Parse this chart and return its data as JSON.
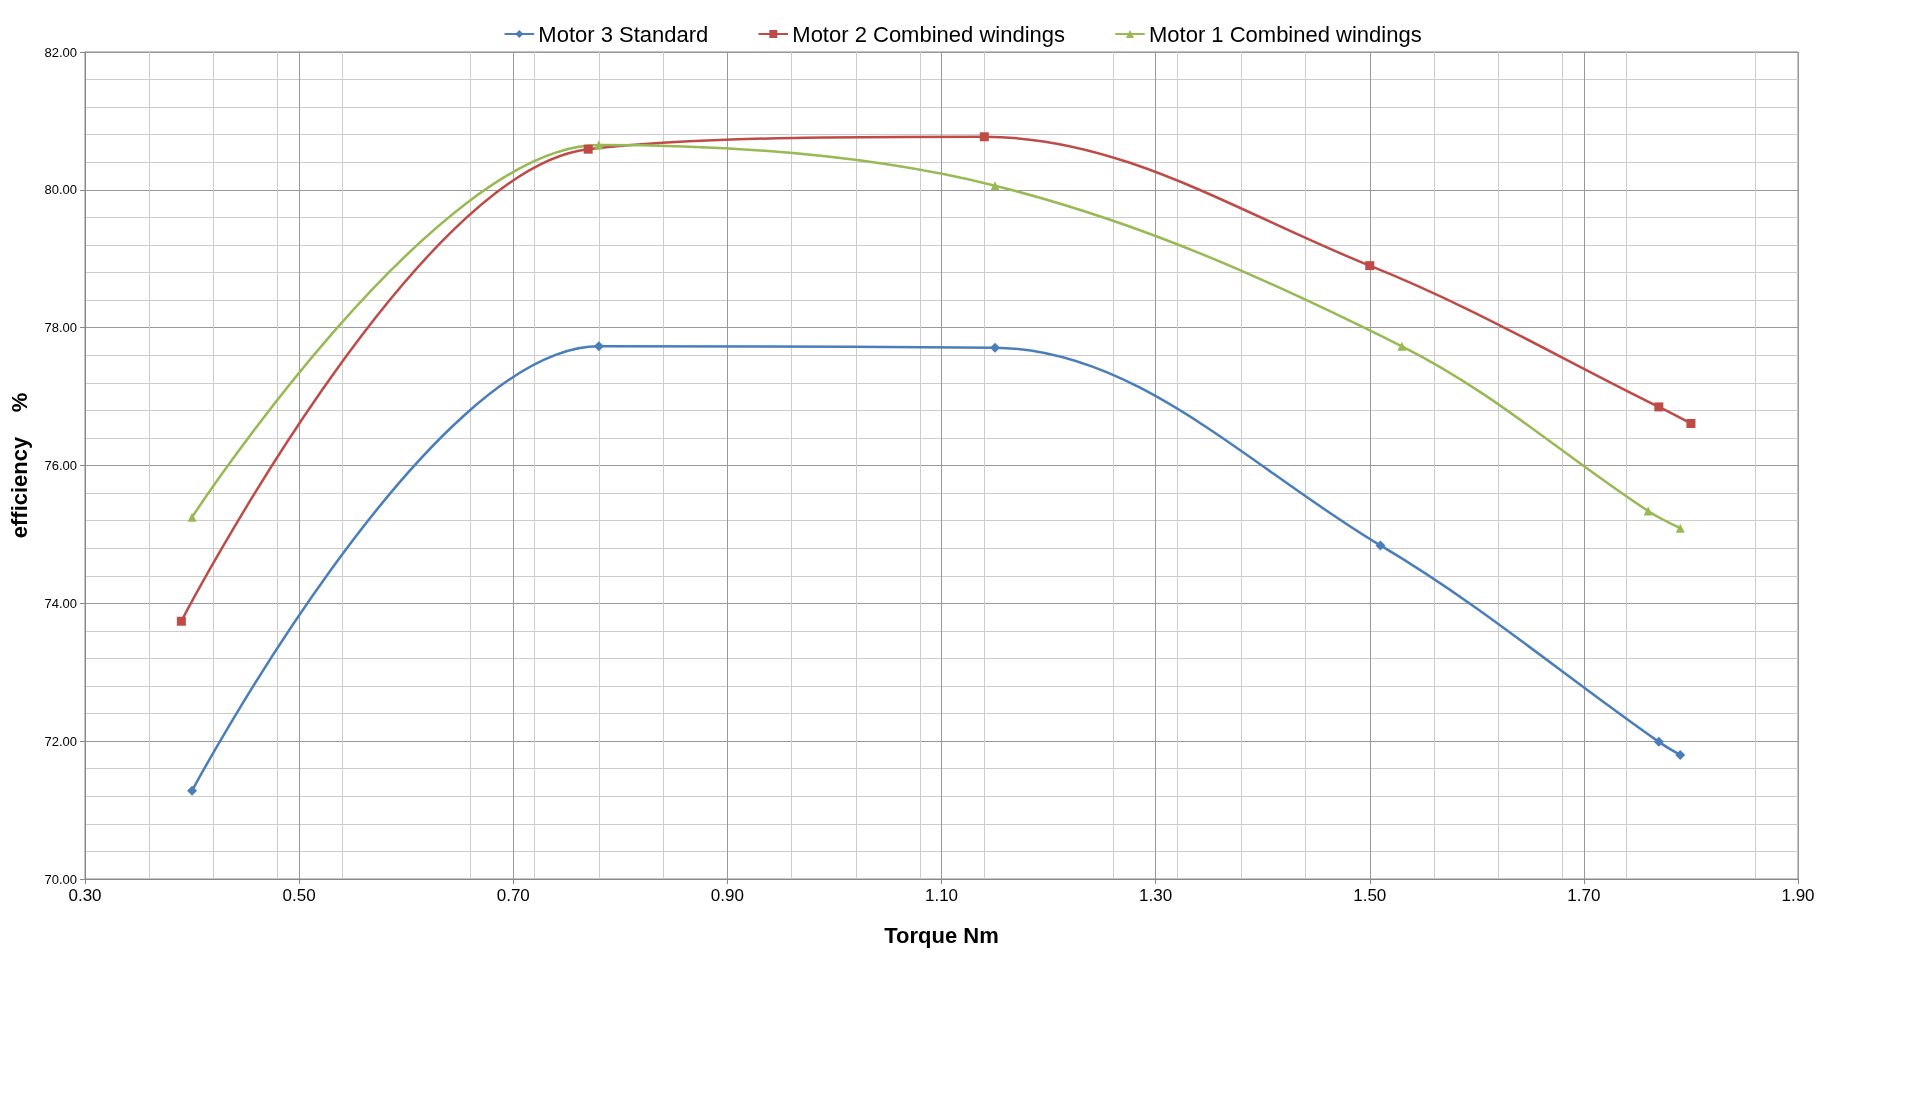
{
  "chart_data": {
    "type": "line",
    "xlabel": "Torque Nm",
    "ylabel": "efficiency    %",
    "xlim": [
      0.3,
      1.9
    ],
    "xticks": [
      {
        "value": 0.3,
        "label": "0.30"
      },
      {
        "value": 0.5,
        "label": "0.50"
      },
      {
        "value": 0.7,
        "label": "0.70"
      },
      {
        "value": 0.9,
        "label": "0.90"
      },
      {
        "value": 1.1,
        "label": "1.10"
      },
      {
        "value": 1.3,
        "label": "1.30"
      },
      {
        "value": 1.5,
        "label": "1.50"
      },
      {
        "value": 1.7,
        "label": "1.70"
      },
      {
        "value": 1.9,
        "label": "1.90"
      }
    ],
    "ylim": [
      70,
      82
    ],
    "yticks": [
      {
        "value": 70,
        "label": "70.00"
      },
      {
        "value": 72,
        "label": "72.00"
      },
      {
        "value": 74,
        "label": "74.00"
      },
      {
        "value": 76,
        "label": "76.00"
      },
      {
        "value": 78,
        "label": "78.00"
      },
      {
        "value": 80,
        "label": "80.00"
      },
      {
        "value": 82,
        "label": "82.00"
      }
    ],
    "grid": true,
    "legend": "top",
    "line_style": "solid",
    "series": [
      {
        "name": "Motor 3 Standard",
        "color": "#4a7ebb",
        "marker": "diamond",
        "x": [
          0.4,
          0.78,
          1.15,
          1.51,
          1.77,
          1.79
        ],
        "values": [
          71.28,
          77.73,
          77.71,
          74.84,
          71.99,
          71.8
        ]
      },
      {
        "name": "Motor 2 Combined windings",
        "color": "#be4b48",
        "marker": "square",
        "x": [
          0.39,
          0.77,
          1.14,
          1.5,
          1.77,
          1.8
        ],
        "values": [
          73.74,
          80.59,
          80.77,
          78.9,
          76.85,
          76.61
        ]
      },
      {
        "name": "Motor 1 Combined windings",
        "color": "#98b954",
        "marker": "triangle",
        "x": [
          0.4,
          0.78,
          1.15,
          1.53,
          1.76,
          1.79
        ],
        "values": [
          75.25,
          80.65,
          80.06,
          77.73,
          75.34,
          75.09
        ]
      }
    ]
  }
}
